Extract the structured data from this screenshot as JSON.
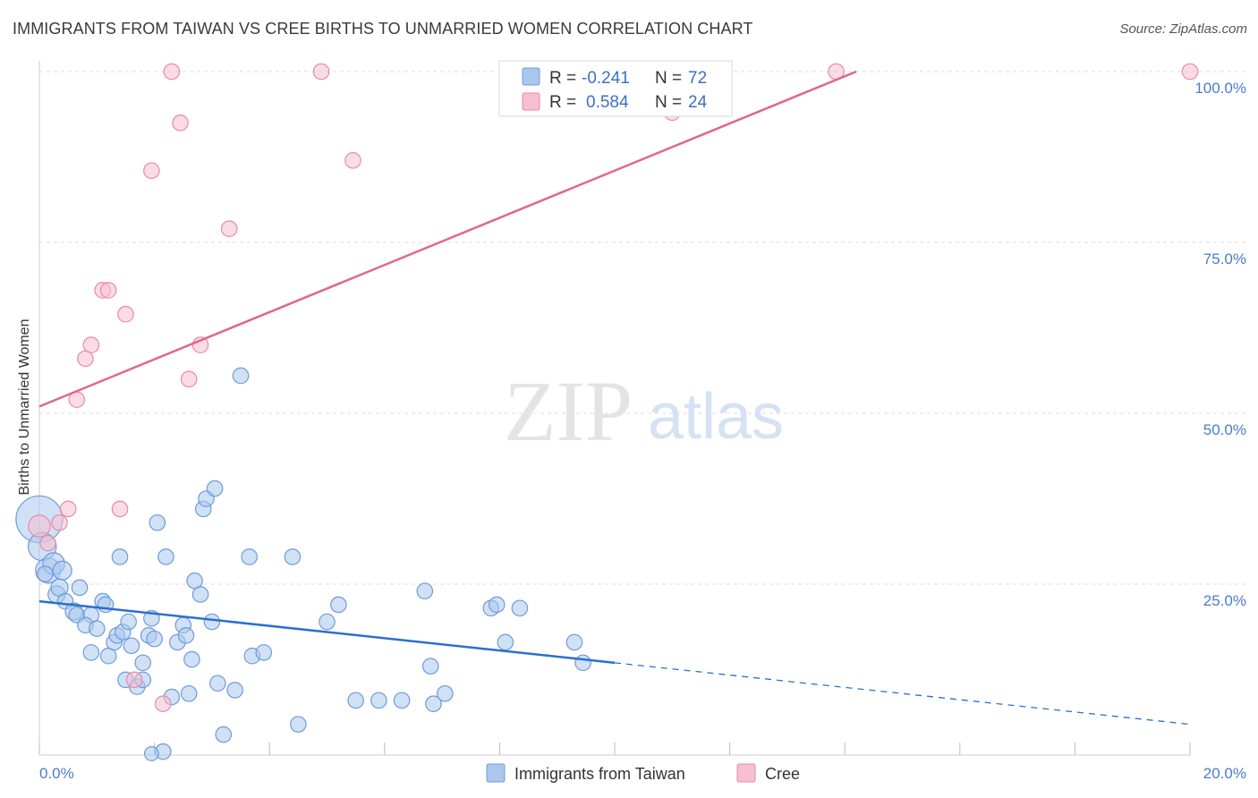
{
  "title": "IMMIGRANTS FROM TAIWAN VS CREE BIRTHS TO UNMARRIED WOMEN CORRELATION CHART",
  "source": "Source: ZipAtlas.com",
  "watermark": {
    "zip": "ZIP",
    "atlas": "atlas"
  },
  "colors": {
    "blue_fill": "#aac8ee",
    "blue_stroke": "#6f9bd8",
    "blue_line": "#2b6fcf",
    "pink_fill": "#f7bfd0",
    "pink_stroke": "#e88aa8",
    "pink_line": "#e0668e",
    "grid": "#dddddd",
    "tick_label": "#4a7cc9"
  },
  "legend": {
    "r_label": "R =",
    "n_label": "N =",
    "series": [
      {
        "name": "Immigrants from Taiwan",
        "r": "-0.241",
        "n": "72"
      },
      {
        "name": "Cree",
        "r": "0.584",
        "n": "24"
      }
    ]
  },
  "chart_data": {
    "type": "scatter",
    "title": "IMMIGRANTS FROM TAIWAN VS CREE BIRTHS TO UNMARRIED WOMEN CORRELATION CHART",
    "xlabel": "",
    "ylabel": "Births to Unmarried Women",
    "xlim": [
      0,
      20
    ],
    "ylim": [
      0,
      100
    ],
    "x_tick_labels": [
      "0.0%",
      "20.0%"
    ],
    "y_tick_labels": [
      "100.0%",
      "75.0%",
      "50.0%",
      "25.0%"
    ],
    "y_ticks": [
      100,
      75,
      50,
      25
    ],
    "series": [
      {
        "name": "Immigrants from Taiwan",
        "color": "#aac8ee",
        "points": [
          [
            0.0,
            34.5,
            30
          ],
          [
            0.05,
            30.5,
            18
          ],
          [
            0.15,
            27.0,
            16
          ],
          [
            0.25,
            28.0,
            14
          ],
          [
            0.4,
            27.0,
            12
          ],
          [
            0.3,
            23.5,
            11
          ],
          [
            0.35,
            24.5,
            11
          ],
          [
            0.7,
            24.5,
            10
          ],
          [
            0.45,
            22.5,
            10
          ],
          [
            0.6,
            21.0,
            11
          ],
          [
            0.65,
            20.5,
            10
          ],
          [
            0.9,
            20.5,
            10
          ],
          [
            0.8,
            19.0,
            10
          ],
          [
            1.0,
            18.5,
            10
          ],
          [
            1.1,
            22.5,
            10
          ],
          [
            1.15,
            22.0,
            10
          ],
          [
            0.9,
            15.0,
            10
          ],
          [
            1.2,
            14.5,
            10
          ],
          [
            1.3,
            16.5,
            10
          ],
          [
            1.35,
            17.5,
            10
          ],
          [
            1.45,
            18.0,
            10
          ],
          [
            1.55,
            19.5,
            10
          ],
          [
            1.6,
            16.0,
            10
          ],
          [
            1.4,
            29.0,
            10
          ],
          [
            1.5,
            11.0,
            10
          ],
          [
            1.7,
            10.0,
            10
          ],
          [
            1.8,
            11.0,
            10
          ],
          [
            1.8,
            13.5,
            10
          ],
          [
            1.9,
            17.5,
            10
          ],
          [
            1.95,
            20.0,
            10
          ],
          [
            2.0,
            17.0,
            10
          ],
          [
            2.05,
            34.0,
            10
          ],
          [
            2.2,
            29.0,
            10
          ],
          [
            2.3,
            8.5,
            10
          ],
          [
            2.4,
            16.5,
            10
          ],
          [
            2.5,
            19.0,
            10
          ],
          [
            2.55,
            17.5,
            10
          ],
          [
            2.6,
            9.0,
            10
          ],
          [
            2.65,
            14.0,
            10
          ],
          [
            2.7,
            25.5,
            10
          ],
          [
            2.8,
            23.5,
            10
          ],
          [
            2.85,
            36.0,
            10
          ],
          [
            2.9,
            37.5,
            10
          ],
          [
            3.0,
            19.5,
            10
          ],
          [
            3.05,
            39.0,
            10
          ],
          [
            3.1,
            10.5,
            10
          ],
          [
            3.2,
            3.0,
            10
          ],
          [
            3.4,
            9.5,
            10
          ],
          [
            3.5,
            55.5,
            10
          ],
          [
            3.65,
            29.0,
            10
          ],
          [
            3.7,
            14.5,
            10
          ],
          [
            3.9,
            15.0,
            10
          ],
          [
            4.4,
            29.0,
            10
          ],
          [
            4.5,
            4.5,
            10
          ],
          [
            5.0,
            19.5,
            10
          ],
          [
            5.2,
            22.0,
            10
          ],
          [
            5.5,
            8.0,
            10
          ],
          [
            5.9,
            8.0,
            10
          ],
          [
            6.3,
            8.0,
            10
          ],
          [
            6.7,
            24.0,
            10
          ],
          [
            6.8,
            13.0,
            10
          ],
          [
            6.85,
            7.5,
            10
          ],
          [
            7.05,
            9.0,
            10
          ],
          [
            7.85,
            21.5,
            10
          ],
          [
            7.95,
            22.0,
            10
          ],
          [
            8.1,
            16.5,
            10
          ],
          [
            8.35,
            21.5,
            10
          ],
          [
            9.3,
            16.5,
            10
          ],
          [
            9.45,
            13.5,
            10
          ],
          [
            2.15,
            0.5,
            10
          ],
          [
            1.95,
            0.2,
            9
          ],
          [
            0.1,
            26.5,
            10
          ]
        ]
      },
      {
        "name": "Cree",
        "color": "#f7bfd0",
        "points": [
          [
            0.0,
            33.5,
            14
          ],
          [
            0.15,
            31.0,
            10
          ],
          [
            0.35,
            34.0,
            10
          ],
          [
            0.5,
            36.0,
            10
          ],
          [
            0.65,
            52.0,
            10
          ],
          [
            0.8,
            58.0,
            10
          ],
          [
            0.9,
            60.0,
            10
          ],
          [
            1.1,
            68.0,
            10
          ],
          [
            1.2,
            68.0,
            10
          ],
          [
            1.5,
            64.5,
            10
          ],
          [
            1.65,
            11.0,
            10
          ],
          [
            1.4,
            36.0,
            10
          ],
          [
            1.95,
            85.5,
            10
          ],
          [
            2.15,
            7.5,
            10
          ],
          [
            2.3,
            100.0,
            10
          ],
          [
            2.45,
            92.5,
            10
          ],
          [
            2.6,
            55.0,
            10
          ],
          [
            2.8,
            60.0,
            10
          ],
          [
            3.3,
            77.0,
            10
          ],
          [
            4.9,
            100.0,
            10
          ],
          [
            5.45,
            87.0,
            10
          ],
          [
            11.0,
            94.0,
            10
          ],
          [
            13.85,
            100.0,
            10
          ],
          [
            20.0,
            100.0,
            10
          ]
        ]
      }
    ],
    "trend_lines": [
      {
        "series": "Immigrants from Taiwan",
        "x0": 0,
        "y0": 22.5,
        "x1": 10,
        "y1": 13.5,
        "dashed_to_x": 20,
        "dashed_to_y": 4.5
      },
      {
        "series": "Cree",
        "x0": 0,
        "y0": 51.0,
        "x1": 14.2,
        "y1": 100.0
      }
    ]
  }
}
